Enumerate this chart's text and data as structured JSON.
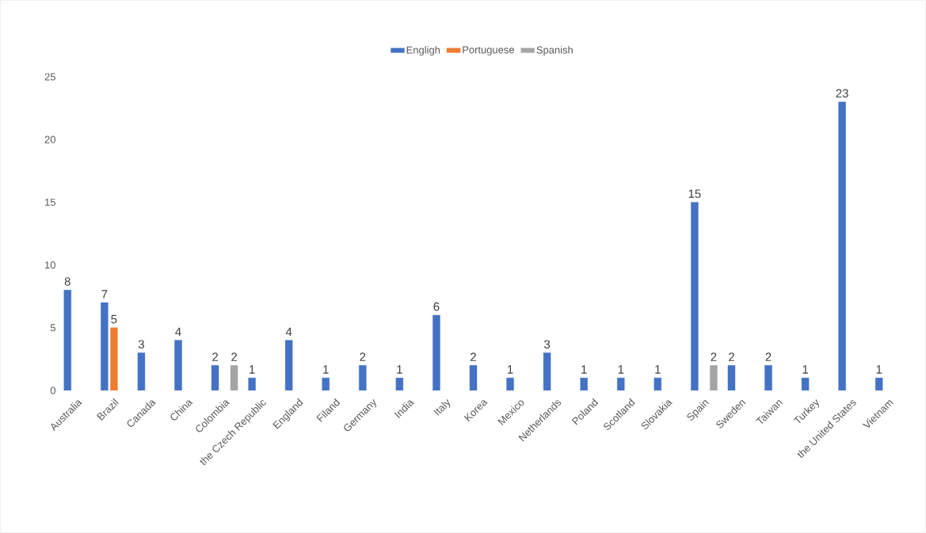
{
  "chart_data": {
    "type": "bar",
    "categories": [
      "Australia",
      "Brazil",
      "Canada",
      "China",
      "Colombia",
      "the Czech Republic",
      "England",
      "Filand",
      "Germany",
      "India",
      "Italy",
      "Korea",
      "Mexico",
      "Netherlands",
      "Poland",
      "Scotland",
      "Slovakia",
      "Spain",
      "Sweden",
      "Taiwan",
      "Turkey",
      "the United States",
      "Vietnam"
    ],
    "series": [
      {
        "name": "Engligh",
        "color": "#4472c4",
        "values": [
          8,
          7,
          3,
          4,
          2,
          1,
          4,
          1,
          2,
          1,
          6,
          2,
          1,
          3,
          1,
          1,
          1,
          15,
          2,
          2,
          1,
          23,
          1
        ]
      },
      {
        "name": "Portuguese",
        "color": "#ed7d31",
        "values": [
          null,
          5,
          null,
          null,
          null,
          null,
          null,
          null,
          null,
          null,
          null,
          null,
          null,
          null,
          null,
          null,
          null,
          null,
          null,
          null,
          null,
          null,
          null
        ]
      },
      {
        "name": "Spanish",
        "color": "#a5a5a5",
        "values": [
          null,
          null,
          null,
          null,
          2,
          null,
          null,
          null,
          null,
          null,
          null,
          null,
          null,
          null,
          null,
          null,
          null,
          2,
          null,
          null,
          null,
          null,
          null
        ]
      }
    ],
    "ylim": [
      0,
      25
    ],
    "yticks": [
      0,
      5,
      10,
      15,
      20,
      25
    ],
    "data_labels": true,
    "legend": "top",
    "grid": false
  }
}
